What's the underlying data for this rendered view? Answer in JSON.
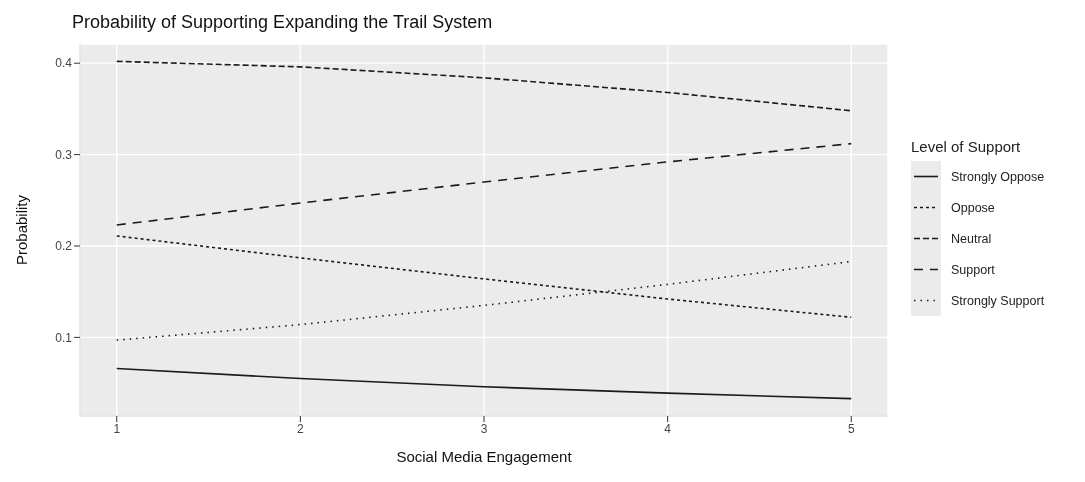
{
  "chart_data": {
    "type": "line",
    "title": "Probability of Supporting Expanding the Trail System",
    "xlabel": "Social Media Engagement",
    "ylabel": "Probability",
    "legend_title": "Level of Support",
    "x": [
      1,
      2,
      3,
      4,
      5
    ],
    "series": [
      {
        "name": "Strongly Oppose",
        "color": "#1a1a1a",
        "line_style": "solid",
        "values": [
          0.066,
          0.055,
          0.046,
          0.039,
          0.033
        ]
      },
      {
        "name": "Oppose",
        "color": "#1a1a1a",
        "line_style": "dotted",
        "values": [
          0.211,
          0.187,
          0.164,
          0.142,
          0.122
        ]
      },
      {
        "name": "Neutral",
        "color": "#1a1a1a",
        "line_style": "dashed",
        "values": [
          0.402,
          0.396,
          0.384,
          0.368,
          0.348
        ]
      },
      {
        "name": "Support",
        "color": "#1a1a1a",
        "line_style": "dashed",
        "values": [
          0.223,
          0.247,
          0.27,
          0.292,
          0.312
        ]
      },
      {
        "name": "Strongly Support",
        "color": "#1a1a1a",
        "line_style": "dotted",
        "values": [
          0.097,
          0.114,
          0.135,
          0.158,
          0.183
        ]
      }
    ],
    "xlim": [
      0.8,
      5.2
    ],
    "xticks": [
      1,
      2,
      3,
      4,
      5
    ],
    "ylim": [
      0.014,
      0.421
    ],
    "yticks": [
      0.1,
      0.2,
      0.3,
      0.4
    ],
    "grid": true,
    "legend": "right",
    "marker": "none"
  }
}
